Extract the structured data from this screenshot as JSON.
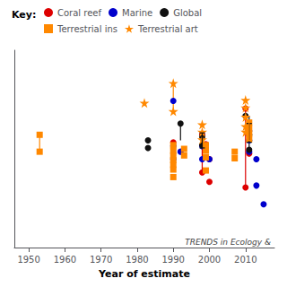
{
  "chart_data": {
    "type": "scatter",
    "xlabel": "Year of estimate",
    "xlim": [
      1946,
      2018
    ],
    "xticks": [
      1950,
      1960,
      1970,
      1980,
      1990,
      2000,
      2010
    ],
    "ylim": [
      0.0,
      1.05
    ],
    "tick_labels": "x",
    "grid": false,
    "legend": "upper right",
    "legend_title": "Key:",
    "annotations": [
      "TRENDS in Ecology &"
    ],
    "series": [
      {
        "name": "Coral reef",
        "color": "#dd0000",
        "marker": "circle",
        "x": [
          1990,
          1998,
          1998,
          1999,
          2000,
          2000,
          2010,
          2010,
          2011
        ],
        "values": [
          0.56,
          0.6,
          0.4,
          0.55,
          0.47,
          0.35,
          0.74,
          0.32,
          0.5
        ],
        "ranges": [
          {
            "x": 1998,
            "from": 0.6,
            "to": 0.4
          },
          {
            "x": 2010,
            "from": 0.74,
            "to": 0.32
          }
        ]
      },
      {
        "name": "Marine",
        "color": "#0000cc",
        "marker": "circle",
        "x": [
          1990,
          1990,
          1992,
          1998,
          1998,
          2000,
          1990,
          2011,
          2011,
          2011,
          2013,
          2013,
          2015
        ],
        "values": [
          0.54,
          0.47,
          0.51,
          0.54,
          0.47,
          0.47,
          0.78,
          0.62,
          0.57,
          0.51,
          0.47,
          0.33,
          0.23
        ]
      },
      {
        "name": "Global",
        "color": "#111111",
        "marker": "circle",
        "x": [
          1983,
          1983,
          1992,
          1998,
          1998,
          2010,
          2011,
          2011
        ],
        "values": [
          0.57,
          0.53,
          0.66,
          0.59,
          0.545,
          0.7,
          0.6,
          0.52
        ],
        "ranges": [
          {
            "x": 1992,
            "from": 0.66,
            "to": 0.57
          },
          {
            "x": 2011,
            "from": 0.7,
            "to": 0.52
          }
        ],
        "error_bars": [
          {
            "x": 1998,
            "y": 0.57,
            "err": 0.04
          },
          {
            "x": 2011,
            "y": 0.61,
            "err": 0.05
          }
        ]
      },
      {
        "name": "Terrestrial ins",
        "color": "#ff8800",
        "marker": "square",
        "x": [
          1953,
          1953,
          1990,
          1990,
          1990,
          1990,
          1990,
          1990,
          1990,
          1993,
          1993,
          1999,
          1999,
          1999,
          1999,
          2007,
          2007,
          2011,
          2011,
          2011,
          2011
        ],
        "values": [
          0.6,
          0.51,
          0.545,
          0.515,
          0.49,
          0.465,
          0.44,
          0.415,
          0.375,
          0.525,
          0.49,
          0.545,
          0.515,
          0.48,
          0.41,
          0.51,
          0.475,
          0.665,
          0.635,
          0.605,
          0.575
        ],
        "ranges": [
          {
            "x": 1953,
            "from": 0.6,
            "to": 0.51
          },
          {
            "x": 2011,
            "from": 0.665,
            "to": 0.575
          }
        ],
        "error_bars": [
          {
            "x": 2011,
            "y": 0.62,
            "err": 0.05
          }
        ]
      },
      {
        "name": "Terrestrial art",
        "color": "#ff8800",
        "marker": "star",
        "x": [
          1982,
          1990,
          1990,
          1998,
          1998,
          1998,
          2010,
          2010,
          2010,
          2010,
          2010
        ],
        "values": [
          0.77,
          0.875,
          0.725,
          0.655,
          0.615,
          0.575,
          0.785,
          0.745,
          0.695,
          0.645,
          0.615
        ],
        "ranges": [
          {
            "x": 1990,
            "from": 0.875,
            "to": 0.725
          }
        ]
      }
    ]
  }
}
